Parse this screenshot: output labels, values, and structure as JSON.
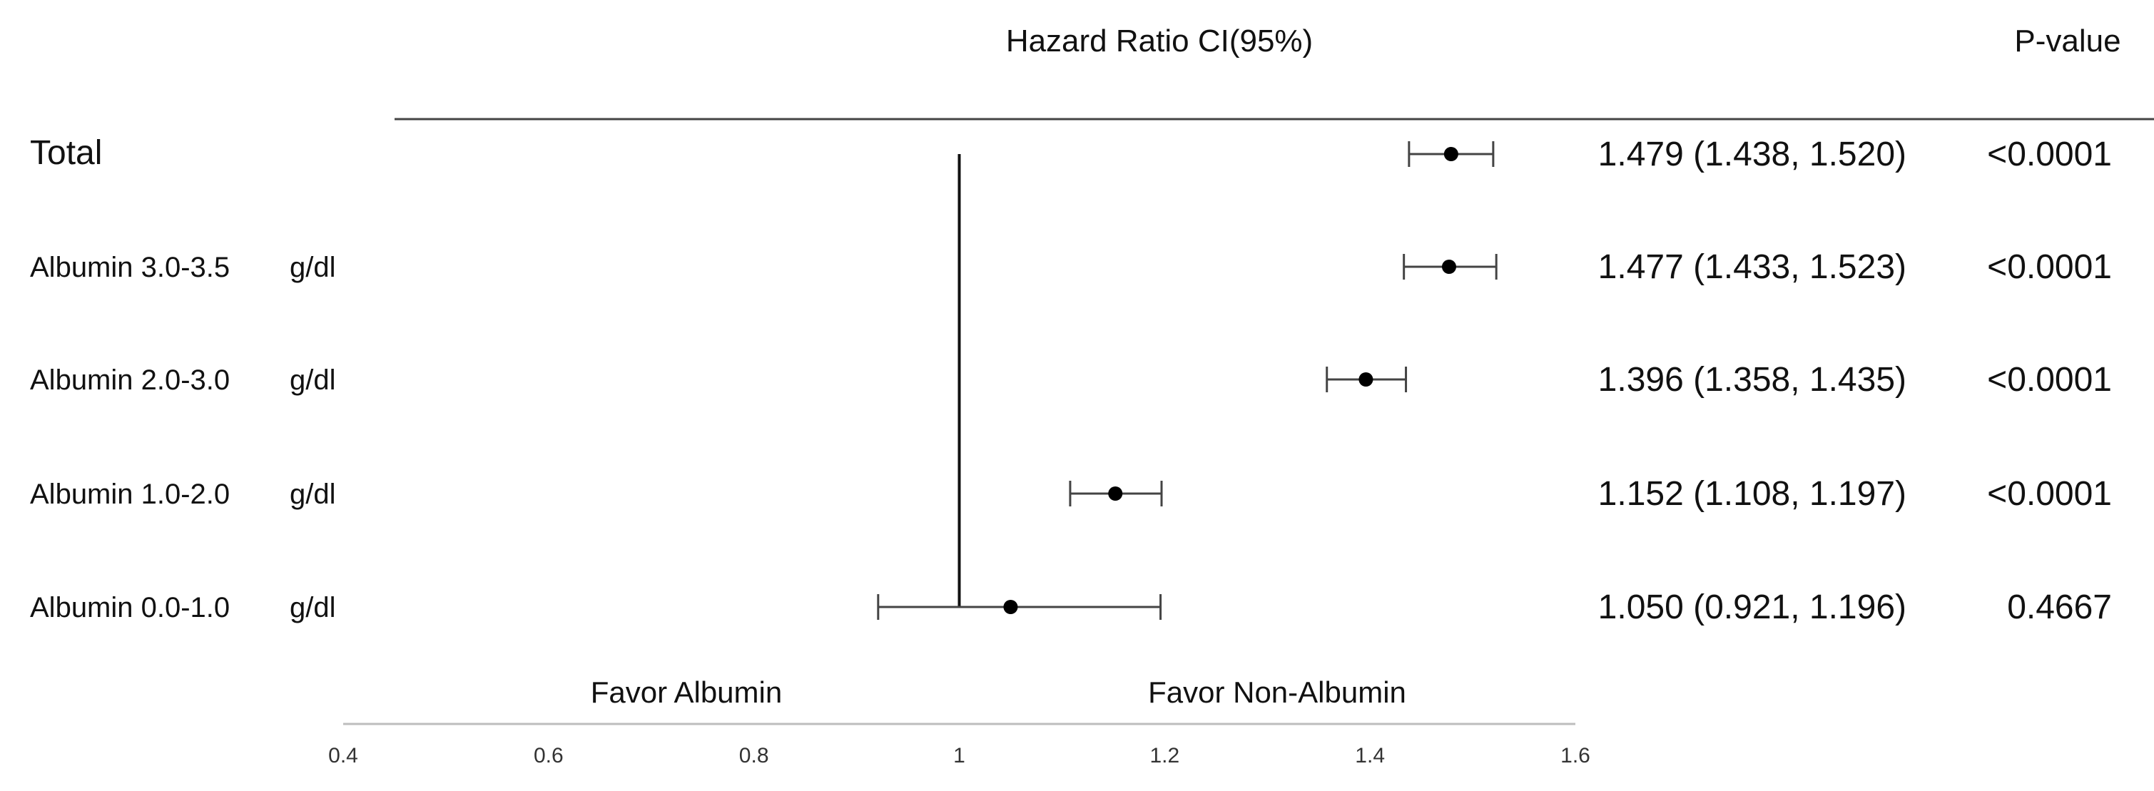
{
  "header": {
    "hr_title": "Hazard Ratio CI(95%)",
    "p_title": "P-value"
  },
  "favor": {
    "left": "Favor Albumin",
    "right": "Favor Non-Albumin"
  },
  "chart_data": {
    "type": "forest",
    "title": "",
    "xlabel": "",
    "reference_line": 1,
    "xlim": [
      0.4,
      1.6
    ],
    "xticks": [
      "0.4",
      "0.6",
      "0.8",
      "1",
      "1.2",
      "1.4",
      "1.6"
    ],
    "rows": [
      {
        "label": "Total",
        "unit": "",
        "hr": 1.479,
        "lo": 1.438,
        "hi": 1.52,
        "ci_text": "1.479 (1.438, 1.520)",
        "p": "<0.0001"
      },
      {
        "label": "Albumin 3.0-3.5",
        "unit": "g/dl",
        "hr": 1.477,
        "lo": 1.433,
        "hi": 1.523,
        "ci_text": "1.477 (1.433, 1.523)",
        "p": "<0.0001"
      },
      {
        "label": "Albumin 2.0-3.0",
        "unit": "g/dl",
        "hr": 1.396,
        "lo": 1.358,
        "hi": 1.435,
        "ci_text": "1.396 (1.358, 1.435)",
        "p": "<0.0001"
      },
      {
        "label": "Albumin 1.0-2.0",
        "unit": "g/dl",
        "hr": 1.152,
        "lo": 1.108,
        "hi": 1.197,
        "ci_text": "1.152 (1.108, 1.197)",
        "p": "<0.0001"
      },
      {
        "label": "Albumin 0.0-1.0",
        "unit": "g/dl",
        "hr": 1.05,
        "lo": 0.921,
        "hi": 1.196,
        "ci_text": "1.050 (0.921, 1.196)",
        "p": "0.4667"
      }
    ]
  }
}
